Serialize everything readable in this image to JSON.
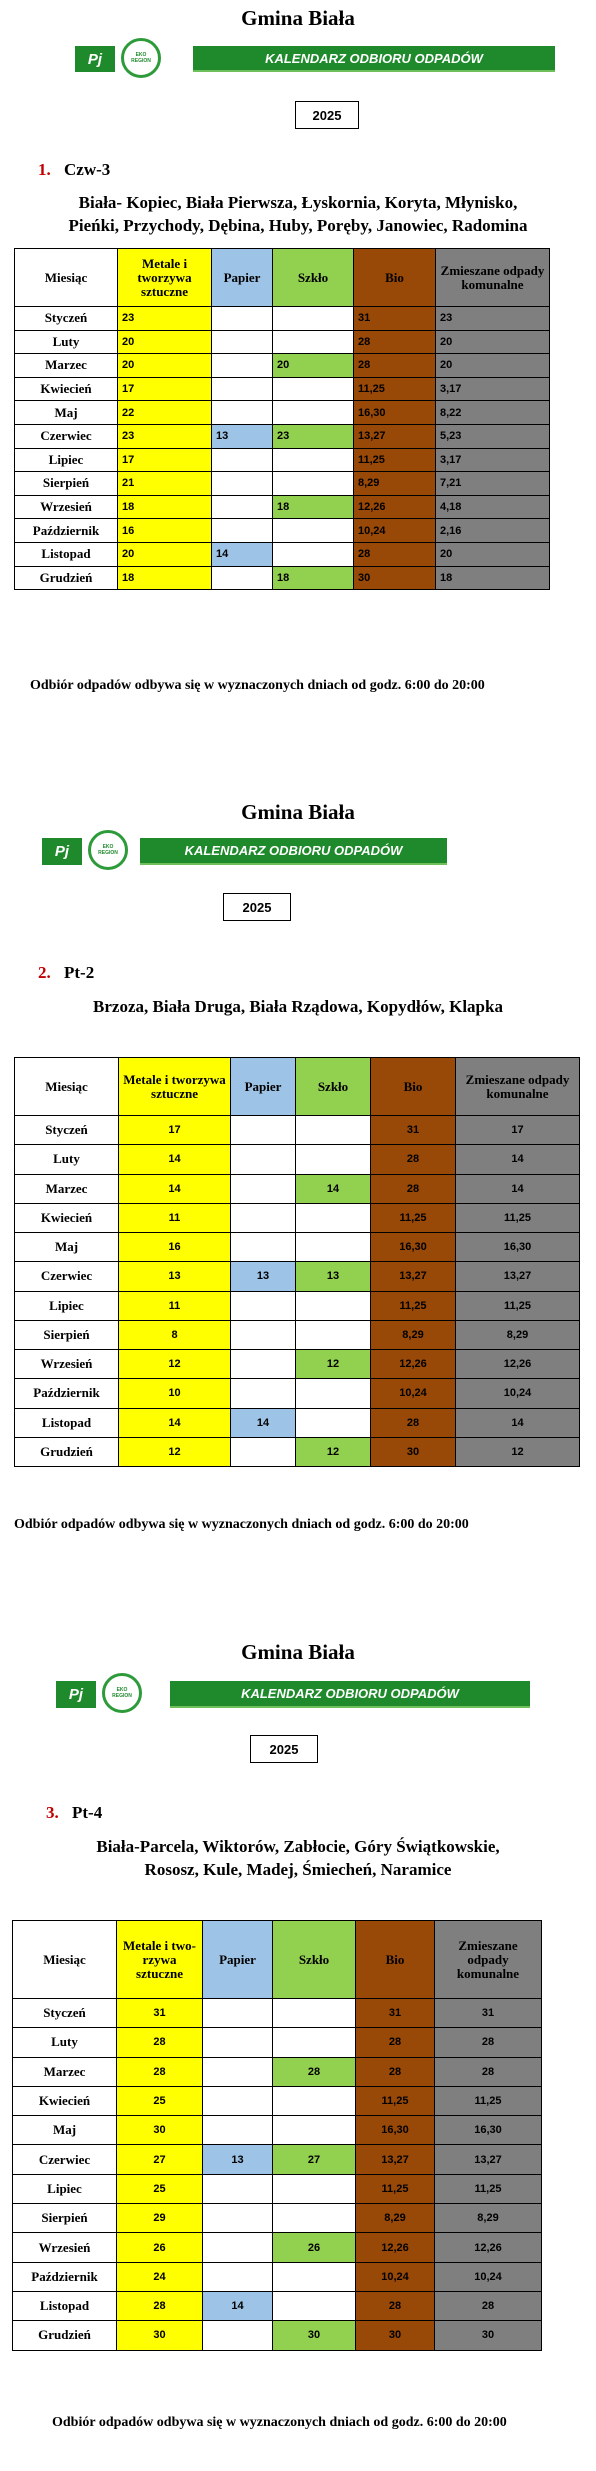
{
  "sections": [
    {
      "title": "Gmina Biała",
      "logo_label": "Pj",
      "logo_text": "EKO REGION",
      "banner": "KALENDARZ ODBIORU ODPADÓW",
      "year": "2025",
      "number": "1.",
      "code": "Czw-3",
      "locations": [
        "Biała- Kopiec, Biała Pierwsza, Łyskornia, Koryta, Młynisko,",
        "Pieńki, Przychody, Dębina, Huby, Poręby, Janowiec,  Radomina"
      ],
      "table": {
        "header": [
          "Miesiąc",
          "Metale i tworzywa sztuczne",
          "Papier",
          "Szkło",
          "Bio",
          "Zmieszane odpady komunalne"
        ],
        "rows": [
          [
            "Styczeń",
            "23",
            null,
            null,
            "31",
            "23"
          ],
          [
            "Luty",
            "20",
            null,
            null,
            "28",
            "20"
          ],
          [
            "Marzec",
            "20",
            null,
            "20",
            "28",
            "20"
          ],
          [
            "Kwiecień",
            "17",
            null,
            null,
            "11,25",
            "3,17"
          ],
          [
            "Maj",
            "22",
            null,
            null,
            "16,30",
            "8,22"
          ],
          [
            "Czerwiec",
            "23",
            "13",
            "23",
            "13,27",
            "5,23"
          ],
          [
            "Lipiec",
            "17",
            null,
            null,
            "11,25",
            "3,17"
          ],
          [
            "Sierpień",
            "21",
            null,
            null,
            "8,29",
            "7,21"
          ],
          [
            "Wrzesień",
            "18",
            null,
            "18",
            "12,26",
            "4,18"
          ],
          [
            "Październik",
            "16",
            null,
            null,
            "10,24",
            "2,16"
          ],
          [
            "Listopad",
            "20",
            "14",
            null,
            "28",
            "20"
          ],
          [
            "Grudzień",
            "18",
            null,
            "18",
            "30",
            "18"
          ]
        ]
      },
      "footer": "Odbiór odpadów odbywa się w wyznaczonych dniach  od godz. 6:00 do 20:00"
    },
    {
      "title": "Gmina Biała",
      "logo_label": "Pj",
      "logo_text": "EKO REGION",
      "banner": "KALENDARZ ODBIORU ODPADÓW",
      "year": "2025",
      "number": "2.",
      "code": "Pt-2",
      "locations": [
        "Brzoza, Biała Druga, Biała Rządowa, Kopydłów, Klapka"
      ],
      "table": {
        "header": [
          "Miesiąc",
          "Metale i tworzywa sztuczne",
          "Papier",
          "Szkło",
          "Bio",
          "Zmieszane odpady komunalne"
        ],
        "rows": [
          [
            "Styczeń",
            "17",
            null,
            null,
            "31",
            "17"
          ],
          [
            "Luty",
            "14",
            null,
            null,
            "28",
            "14"
          ],
          [
            "Marzec",
            "14",
            null,
            "14",
            "28",
            "14"
          ],
          [
            "Kwiecień",
            "11",
            null,
            null,
            "11,25",
            "11,25"
          ],
          [
            "Maj",
            "16",
            null,
            null,
            "16,30",
            "16,30"
          ],
          [
            "Czerwiec",
            "13",
            "13",
            "13",
            "13,27",
            "13,27"
          ],
          [
            "Lipiec",
            "11",
            null,
            null,
            "11,25",
            "11,25"
          ],
          [
            "Sierpień",
            "8",
            null,
            null,
            "8,29",
            "8,29"
          ],
          [
            "Wrzesień",
            "12",
            null,
            "12",
            "12,26",
            "12,26"
          ],
          [
            "Październik",
            "10",
            null,
            null,
            "10,24",
            "10,24"
          ],
          [
            "Listopad",
            "14",
            "14",
            null,
            "28",
            "14"
          ],
          [
            "Grudzień",
            "12",
            null,
            "12",
            "30",
            "12"
          ]
        ]
      },
      "footer": "Odbiór odpadów odbywa się w wyznaczonych dniach  od godz. 6:00 do 20:00"
    },
    {
      "title": "Gmina Biała",
      "logo_label": "Pj",
      "logo_text": "EKO REGION",
      "banner": "KALENDARZ ODBIORU ODPADÓW",
      "year": "2025",
      "number": "3.",
      "code": "Pt-4",
      "locations": [
        "Biała-Parcela, Wiktorów, Zabłocie, Góry Świątkowskie,",
        "Rososz, Kule, Madej, Śmiecheń, Naramice"
      ],
      "table": {
        "header": [
          "Miesiąc",
          "Metale i two-rzywa sztuczne",
          "Papier",
          "Szkło",
          "Bio",
          "Zmieszane odpady komunalne"
        ],
        "rows": [
          [
            "Styczeń",
            "31",
            null,
            null,
            "31",
            "31"
          ],
          [
            "Luty",
            "28",
            null,
            null,
            "28",
            "28"
          ],
          [
            "Marzec",
            "28",
            null,
            "28",
            "28",
            "28"
          ],
          [
            "Kwiecień",
            "25",
            null,
            null,
            "11,25",
            "11,25"
          ],
          [
            "Maj",
            "30",
            null,
            null,
            "16,30",
            "16,30"
          ],
          [
            "Czerwiec",
            "27",
            "13",
            "27",
            "13,27",
            "13,27"
          ],
          [
            "Lipiec",
            "25",
            null,
            null,
            "11,25",
            "11,25"
          ],
          [
            "Sierpień",
            "29",
            null,
            null,
            "8,29",
            "8,29"
          ],
          [
            "Wrzesień",
            "26",
            null,
            "26",
            "12,26",
            "12,26"
          ],
          [
            "Październik",
            "24",
            null,
            null,
            "10,24",
            "10,24"
          ],
          [
            "Listopad",
            "28",
            "14",
            null,
            "28",
            "28"
          ],
          [
            "Grudzień",
            "30",
            null,
            "30",
            "30",
            "30"
          ]
        ]
      },
      "footer": "Odbiór odpadów odbywa się w wyznaczonych dniach  od godz. 6:00 do 20:00"
    }
  ]
}
